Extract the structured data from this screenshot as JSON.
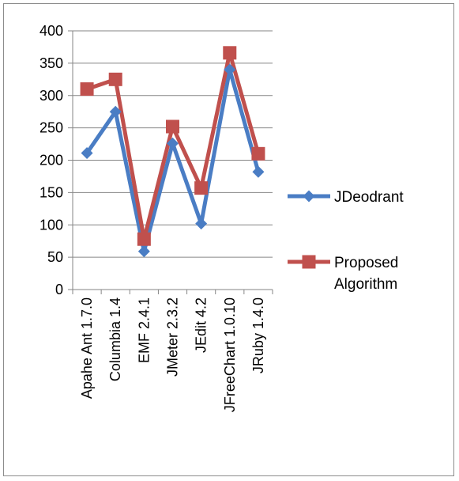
{
  "chart_data": {
    "type": "line",
    "title": "",
    "xlabel": "",
    "ylabel": "",
    "categories": [
      "Apahe Ant 1.7.0",
      "Columbia 1.4",
      "EMF 2.4.1",
      "JMeter 2.3.2",
      "JEdit 4.2",
      "JFreeChart 1.0.10",
      "JRuby 1.4.0"
    ],
    "ylim": [
      0,
      400
    ],
    "yticks": [
      "0",
      "50",
      "100",
      "150",
      "200",
      "250",
      "300",
      "350",
      "400"
    ],
    "grid": true,
    "legend_position": "right",
    "series": [
      {
        "name": "JDeodrant",
        "values": [
          211,
          275,
          59,
          226,
          102,
          340,
          182
        ],
        "color": "#4a7dc4",
        "marker": "diamond"
      },
      {
        "name": "Proposed Algorithm",
        "values": [
          310,
          325,
          78,
          252,
          157,
          366,
          210
        ],
        "color": "#c0504d",
        "marker": "square"
      }
    ],
    "legend": [
      {
        "lines": [
          "JDeodrant"
        ]
      },
      {
        "lines": [
          "Proposed",
          "Algorithm"
        ]
      }
    ]
  }
}
